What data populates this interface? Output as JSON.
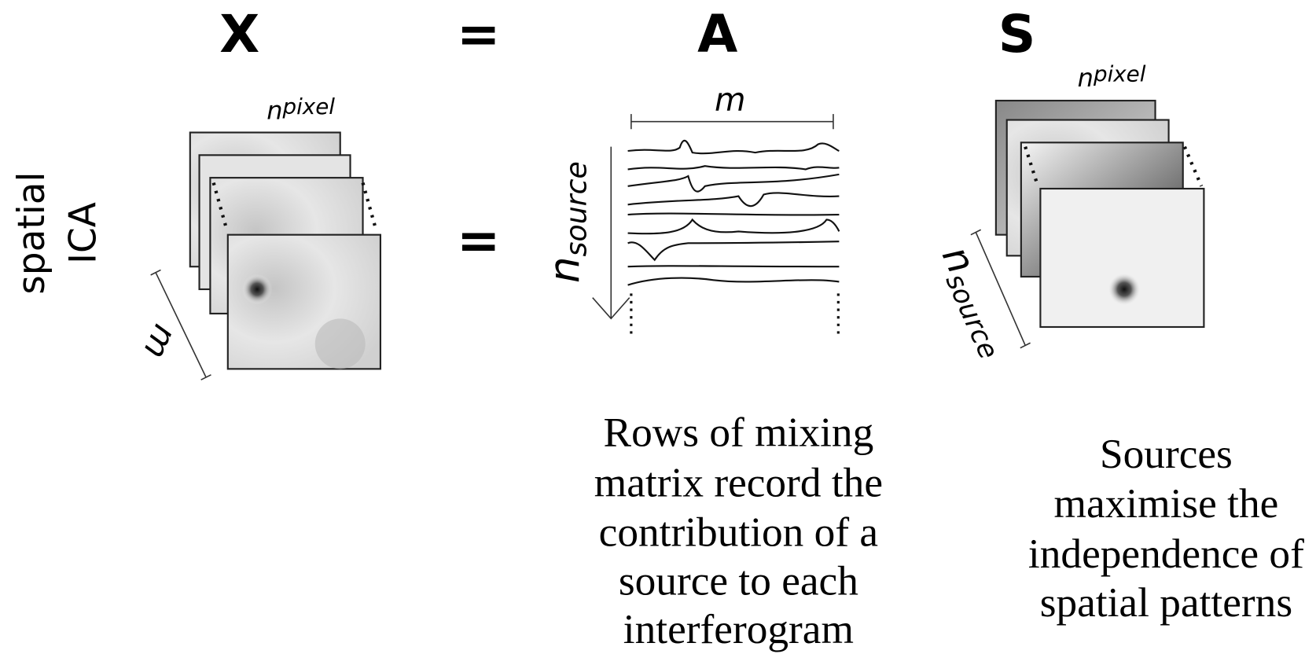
{
  "header": {
    "x": "X",
    "equals": "=",
    "a": "A",
    "s": "S"
  },
  "row": {
    "label": [
      "spatial",
      "ICA"
    ],
    "equals": "="
  },
  "x_panel": {
    "width_label": {
      "base": "n",
      "sub": "pixel"
    },
    "depth_label": "m"
  },
  "a_panel": {
    "width_label": "m",
    "height_label": {
      "base": "n",
      "sub": "source"
    },
    "caption": [
      "Rows of mixing",
      "matrix record the",
      "contribution of a",
      "source to each",
      "interferogram"
    ]
  },
  "s_panel": {
    "width_label": {
      "base": "n",
      "sub": "pixel"
    },
    "depth_label": {
      "base": "n",
      "sub": "source"
    },
    "caption": [
      "Sources",
      "maximise the",
      "independence of",
      "spatial patterns"
    ]
  }
}
